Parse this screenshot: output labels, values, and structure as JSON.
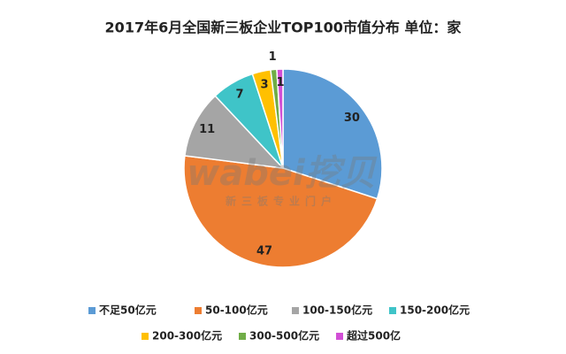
{
  "chart_data": {
    "type": "pie",
    "title": "2017年6月全国新三板企业TOP100市值分布  单位：家",
    "categories": [
      "不足50亿元",
      "50-100亿元",
      "100-150亿元",
      "150-200亿元",
      "200-300亿元",
      "300-500亿元",
      "超过500亿"
    ],
    "values": [
      30,
      47,
      11,
      7,
      3,
      1,
      1
    ],
    "colors": [
      "#5b9bd5",
      "#ed7d31",
      "#a5a5a5",
      "#3fc4c8",
      "#ffc000",
      "#70ad47",
      "#d24fd6"
    ],
    "watermark": "wabei挖贝",
    "watermark_subtitle": "新三板专业门户"
  }
}
